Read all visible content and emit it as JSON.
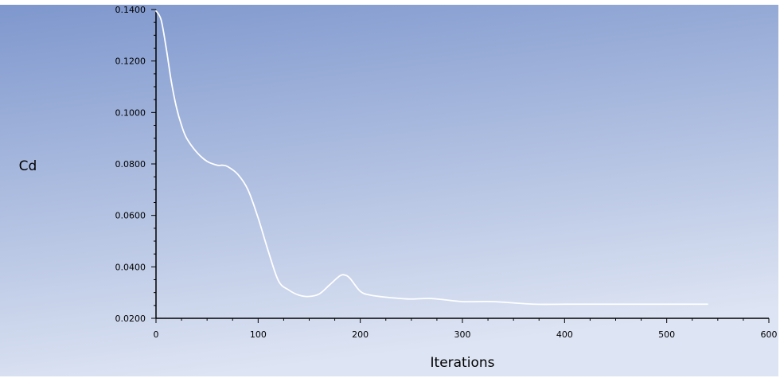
{
  "chart_data": {
    "type": "line",
    "title": "",
    "xlabel": "Iterations",
    "ylabel": "Cd",
    "xlim": [
      0,
      600
    ],
    "ylim": [
      0.02,
      0.14
    ],
    "x_ticks": [
      0,
      100,
      200,
      300,
      400,
      500,
      600
    ],
    "y_ticks": [
      0.02,
      0.04,
      0.06,
      0.08,
      0.1,
      0.12,
      0.14
    ],
    "x_tick_labels": [
      "0",
      "100",
      "200",
      "300",
      "400",
      "500",
      "600"
    ],
    "y_tick_labels": [
      "0.0200",
      "0.0400",
      "0.0600",
      "0.0800",
      "0.1000",
      "0.1200",
      "0.1400"
    ],
    "grid": false,
    "legend": "none",
    "colors": {
      "background_top": "#7e97cd",
      "background_bottom": "#dde4f3",
      "line": "#ffffff",
      "axis": "#000000"
    },
    "series": [
      {
        "x": [
          0,
          5,
          10,
          15,
          20,
          25,
          30,
          40,
          50,
          60,
          65,
          70,
          80,
          90,
          100,
          110,
          120,
          130,
          140,
          150,
          160,
          170,
          180,
          185,
          190,
          200,
          210,
          230,
          250,
          270,
          300,
          330,
          370,
          400,
          450,
          500,
          540
        ],
        "y": [
          0.1395,
          0.136,
          0.125,
          0.112,
          0.102,
          0.095,
          0.09,
          0.0845,
          0.081,
          0.0795,
          0.0795,
          0.079,
          0.076,
          0.07,
          0.059,
          0.046,
          0.0345,
          0.031,
          0.029,
          0.0285,
          0.0295,
          0.033,
          0.0365,
          0.0368,
          0.0355,
          0.0305,
          0.029,
          0.028,
          0.0275,
          0.0277,
          0.0265,
          0.0265,
          0.0255,
          0.0255,
          0.0255,
          0.0255,
          0.0255
        ]
      }
    ]
  }
}
